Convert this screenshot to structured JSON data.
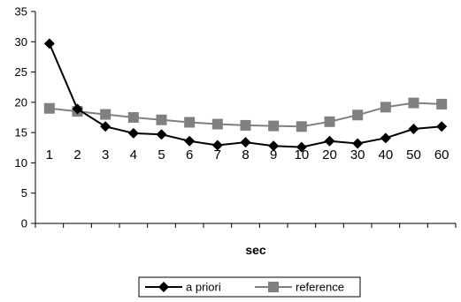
{
  "chart_data": {
    "type": "line",
    "title": "",
    "xlabel": "sec",
    "ylabel": "",
    "categories": [
      "1",
      "2",
      "3",
      "4",
      "5",
      "6",
      "7",
      "8",
      "9",
      "10",
      "20",
      "30",
      "40",
      "50",
      "60"
    ],
    "ylim": [
      0,
      35
    ],
    "yticks": [
      "0",
      "5",
      "10",
      "15",
      "20",
      "25",
      "30",
      "35"
    ],
    "grid": false,
    "legend_position": "bottom",
    "series": [
      {
        "name": "a priori",
        "marker": "diamond",
        "color": "#000000",
        "values": [
          29.7,
          18.9,
          16.0,
          14.9,
          14.7,
          13.6,
          12.9,
          13.4,
          12.8,
          12.6,
          13.6,
          13.2,
          14.1,
          15.6,
          16.0
        ]
      },
      {
        "name": "reference",
        "marker": "square",
        "color": "#808080",
        "values": [
          19.0,
          18.5,
          18.0,
          17.5,
          17.1,
          16.7,
          16.4,
          16.2,
          16.1,
          16.0,
          16.8,
          17.9,
          19.2,
          19.9,
          19.7
        ]
      }
    ]
  }
}
